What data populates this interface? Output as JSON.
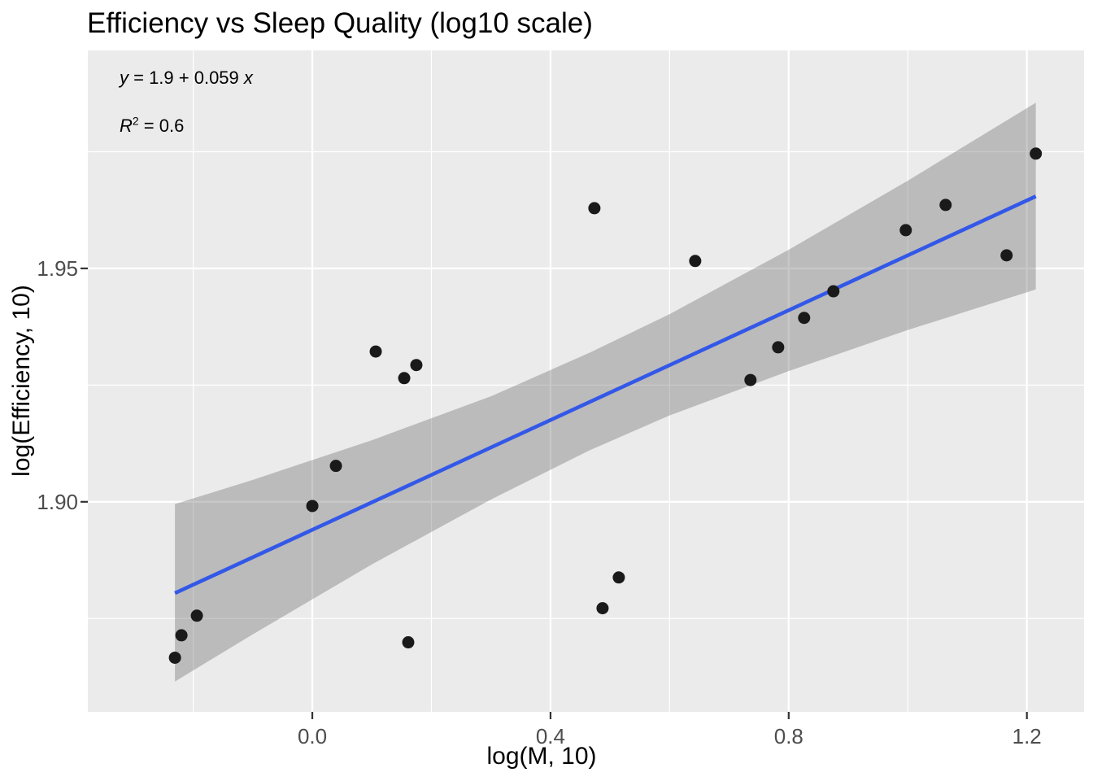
{
  "title": "Efficiency vs Sleep Quality (log10 scale)",
  "annotation": {
    "eq_y": "y",
    "eq_mid": " = 1.9 + 0.059 ",
    "eq_x": "x",
    "r_base": "R",
    "r_sup": "2",
    "r_rest": " = 0.6"
  },
  "colors": {
    "panel_bg": "#EBEBEB",
    "grid": "#FFFFFF",
    "band_fill": "rgba(110,110,110,0.38)",
    "regression_line": "#3358E8",
    "point": "#1A1A1A",
    "tick_label": "#4D4D4D",
    "tick_mark": "#333333",
    "text": "#000000"
  },
  "chart_data": {
    "type": "scatter",
    "title": "Efficiency vs Sleep Quality (log10 scale)",
    "xlabel": "log(M, 10)",
    "ylabel": "log(Efficiency, 10)",
    "xlim": [
      -0.377,
      1.296
    ],
    "ylim": [
      1.855,
      1.9967
    ],
    "grid_on": true,
    "x_major_ticks": [
      0.0,
      0.4,
      0.8,
      1.2
    ],
    "x_tick_labels": [
      "0.0",
      "0.4",
      "0.8",
      "1.2"
    ],
    "x_minor_ticks": [
      -0.2,
      0.2,
      0.6,
      1.0
    ],
    "y_major_ticks": [
      1.9,
      1.95
    ],
    "y_tick_labels": [
      "1.90",
      "1.95"
    ],
    "y_minor_ticks": [
      1.875,
      1.925,
      1.975
    ],
    "points": [
      [
        -0.2307,
        1.8666
      ],
      [
        -0.2198,
        1.8714
      ],
      [
        -0.1939,
        1.8756
      ],
      [
        0.0,
        1.8991
      ],
      [
        0.0396,
        1.9077
      ],
      [
        0.1065,
        1.9322
      ],
      [
        0.1543,
        1.9265
      ],
      [
        0.1611,
        1.8699
      ],
      [
        0.1747,
        1.9293
      ],
      [
        0.4737,
        1.9629
      ],
      [
        0.4874,
        1.8772
      ],
      [
        0.5147,
        1.8838
      ],
      [
        0.643,
        1.9516
      ],
      [
        0.7358,
        1.9261
      ],
      [
        0.7823,
        1.9331
      ],
      [
        0.8259,
        1.9394
      ],
      [
        0.8751,
        1.9451
      ],
      [
        0.9966,
        1.9582
      ],
      [
        1.0635,
        1.9636
      ],
      [
        1.1659,
        1.9528
      ],
      [
        1.215,
        1.9746
      ]
    ],
    "regression": {
      "intercept": 1.894,
      "slope": 0.0588,
      "x_start": -0.2307,
      "x_end": 1.215,
      "equation_label": "y = 1.9 + 0.059 x",
      "r_squared_label": "R2 = 0.6",
      "r_squared": 0.6
    },
    "confidence_band": {
      "x": [
        -0.2307,
        -0.1,
        0.1,
        0.3,
        0.465,
        0.6,
        0.8,
        1.0,
        1.215
      ],
      "upper": [
        1.8995,
        1.9047,
        1.9132,
        1.9226,
        1.9319,
        1.9402,
        1.954,
        1.9688,
        1.9855
      ],
      "lower": [
        1.8615,
        1.8716,
        1.8866,
        1.9005,
        1.911,
        1.9185,
        1.928,
        1.9368,
        1.9455
      ]
    }
  }
}
